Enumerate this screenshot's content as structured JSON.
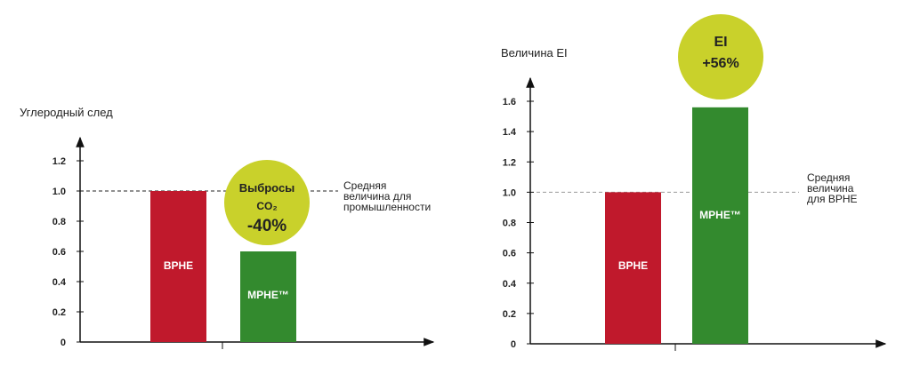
{
  "chart_data": [
    {
      "type": "bar",
      "ylabel": "Углеродный след",
      "ylim": [
        0,
        1.2
      ],
      "yticks": [
        "0",
        "0.2",
        "0.4",
        "0.6",
        "0.8",
        "1.0",
        "1.2"
      ],
      "categories": [
        "BPHE",
        "MPHE™"
      ],
      "values": [
        1.0,
        0.6
      ],
      "colors": [
        "#c0192c",
        "#338a2e"
      ],
      "reference_value": 1.0,
      "reference_label": [
        "Средняя",
        "величина для",
        "промышленности"
      ],
      "bubble": {
        "lines": [
          "Выбросы",
          "CO₂",
          "-40%"
        ],
        "color": "#c9d12b"
      }
    },
    {
      "type": "bar",
      "ylabel": "Величина EI",
      "ylim": [
        0,
        1.6
      ],
      "yticks": [
        "0",
        "0.2",
        "0.4",
        "0.6",
        "0.8",
        "1.0",
        "1.2",
        "1.4",
        "1.6"
      ],
      "categories": [
        "BPHE",
        "MPHE™"
      ],
      "values": [
        1.0,
        1.56
      ],
      "colors": [
        "#c0192c",
        "#338a2e"
      ],
      "reference_value": 1.0,
      "reference_label": [
        "Средняя",
        "величина",
        "для BPHE"
      ],
      "bubble": {
        "lines": [
          "EI",
          "+56%"
        ],
        "color": "#c9d12b"
      }
    }
  ]
}
